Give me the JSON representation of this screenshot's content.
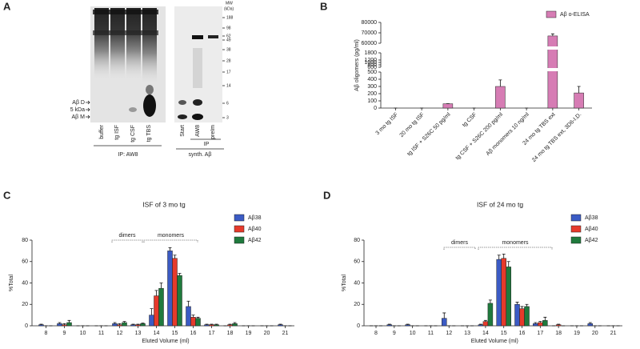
{
  "panel_a": {
    "label": "A",
    "lanes": [
      "buffer",
      "tg ISF",
      "tg CSF",
      "tg TBS",
      "Start",
      "AW8",
      "preIm"
    ],
    "ip_label": "IP: AW8",
    "ip_right": "IP",
    "synth_label": "synth. Aβ",
    "markers": [
      "Aβ D",
      "5 kDa",
      "Aβ M"
    ],
    "mw_title": "MW",
    "mw_unit": "(kDa)",
    "mw": [
      188,
      98,
      62,
      49,
      38,
      28,
      17,
      14,
      6,
      3
    ]
  },
  "chart_data": [
    {
      "type": "bar",
      "panel_label": "B",
      "ylabel": "Aβ oligomers (pg/ml)",
      "categories": [
        "3 mo tg ISF",
        "20 mo tg ISF",
        "tg ISF + S26C 50 pg/ml",
        "tg CSF",
        "tg CSF + S26C 200 pg/ml",
        "Aβ monomers 10 ng/ml",
        "24 mo tg TBS ext",
        "24 mo tg TBS ext, 3D6-I.D."
      ],
      "series": [
        {
          "name": "Aβ o-ELISA",
          "color": "#d67cb4",
          "values": [
            0,
            0,
            60,
            0,
            300,
            0,
            67000,
            210
          ],
          "errors": [
            0,
            0,
            0,
            0,
            90,
            0,
            2000,
            90
          ]
        }
      ],
      "y_segments": [
        {
          "ylim": [
            0,
            500
          ],
          "yticks": [
            0,
            100,
            200,
            300,
            400,
            500
          ]
        },
        {
          "ylim": [
            600,
            1800
          ],
          "yticks": [
            600,
            800,
            1000,
            1200,
            1800
          ]
        },
        {
          "ylim": [
            60000,
            80000
          ],
          "yticks": [
            60000,
            70000,
            80000
          ]
        }
      ],
      "legend": "top-right"
    },
    {
      "type": "bar",
      "panel_label": "C",
      "title": "ISF of 3 mo tg",
      "xlabel": "Eluted Volume (ml)",
      "ylabel": "%Total",
      "x": [
        8,
        9,
        10,
        11,
        12,
        13,
        14,
        15,
        16,
        17,
        18,
        19,
        20,
        21
      ],
      "xlim": [
        7.5,
        21.5
      ],
      "xticks": [
        8,
        9,
        10,
        11,
        12,
        13,
        14,
        15,
        16,
        17,
        18,
        19,
        20,
        21
      ],
      "ylim": [
        0,
        80
      ],
      "yticks": [
        0,
        20,
        40,
        60,
        80
      ],
      "annotations": [
        "dimers",
        "monomers"
      ],
      "series": [
        {
          "name": "Aβ38",
          "color": "#3b5bc4",
          "values": [
            1,
            2,
            0,
            0,
            2,
            1,
            10,
            70,
            18,
            1,
            0,
            0,
            0,
            1
          ],
          "errors": [
            0.5,
            1,
            0,
            0,
            1,
            0.5,
            6,
            3,
            5,
            0.5,
            0,
            0,
            0,
            0.5
          ]
        },
        {
          "name": "Aβ40",
          "color": "#e63a2b",
          "values": [
            0,
            1,
            0,
            0,
            1,
            1,
            28,
            63,
            8,
            1,
            1,
            0,
            0,
            0
          ],
          "errors": [
            0,
            1,
            0,
            0,
            1,
            0.5,
            5,
            3,
            2,
            0.5,
            0.5,
            0,
            0,
            0
          ]
        },
        {
          "name": "Aβ42",
          "color": "#1f7a3d",
          "values": [
            0,
            3,
            0,
            0,
            3,
            2,
            35,
            47,
            7,
            1,
            2,
            0,
            0,
            0
          ],
          "errors": [
            0,
            2,
            0,
            0,
            1,
            0.5,
            5,
            2,
            1,
            0.5,
            1,
            0,
            0,
            0
          ]
        }
      ]
    },
    {
      "type": "bar",
      "panel_label": "D",
      "title": "ISF of 24 mo tg",
      "xlabel": "Eluted Volume (ml)",
      "ylabel": "%Total",
      "x": [
        8,
        9,
        10,
        11,
        12,
        13,
        14,
        15,
        16,
        17,
        18,
        19,
        20,
        21
      ],
      "xlim": [
        7.5,
        21.5
      ],
      "xticks": [
        8,
        9,
        10,
        11,
        12,
        13,
        14,
        15,
        16,
        17,
        18,
        19,
        20,
        21
      ],
      "ylim": [
        0,
        80
      ],
      "yticks": [
        0,
        20,
        40,
        60,
        80
      ],
      "annotations": [
        "dimers",
        "monomers"
      ],
      "series": [
        {
          "name": "Aβ38",
          "color": "#3b5bc4",
          "values": [
            0,
            1,
            1,
            0,
            7,
            0,
            1,
            62,
            20,
            2,
            0,
            0,
            2,
            0
          ],
          "errors": [
            0,
            0.5,
            0.5,
            0,
            5,
            0,
            0.5,
            4,
            2,
            1,
            0,
            0,
            1,
            0
          ]
        },
        {
          "name": "Aβ40",
          "color": "#e63a2b",
          "values": [
            0,
            0,
            0,
            0,
            0,
            0,
            4,
            63,
            16,
            3,
            1,
            0,
            0,
            0
          ],
          "errors": [
            0,
            0,
            0,
            0,
            0,
            0,
            1,
            4,
            2,
            1,
            0.5,
            0,
            0,
            0
          ]
        },
        {
          "name": "Aβ42",
          "color": "#1f7a3d",
          "values": [
            0,
            0,
            0,
            0,
            0,
            0,
            21,
            55,
            18,
            5,
            0,
            0,
            0,
            0
          ],
          "errors": [
            0,
            0,
            0,
            0,
            0,
            0,
            3,
            5,
            2,
            3,
            0,
            0,
            0,
            0
          ]
        }
      ]
    }
  ]
}
